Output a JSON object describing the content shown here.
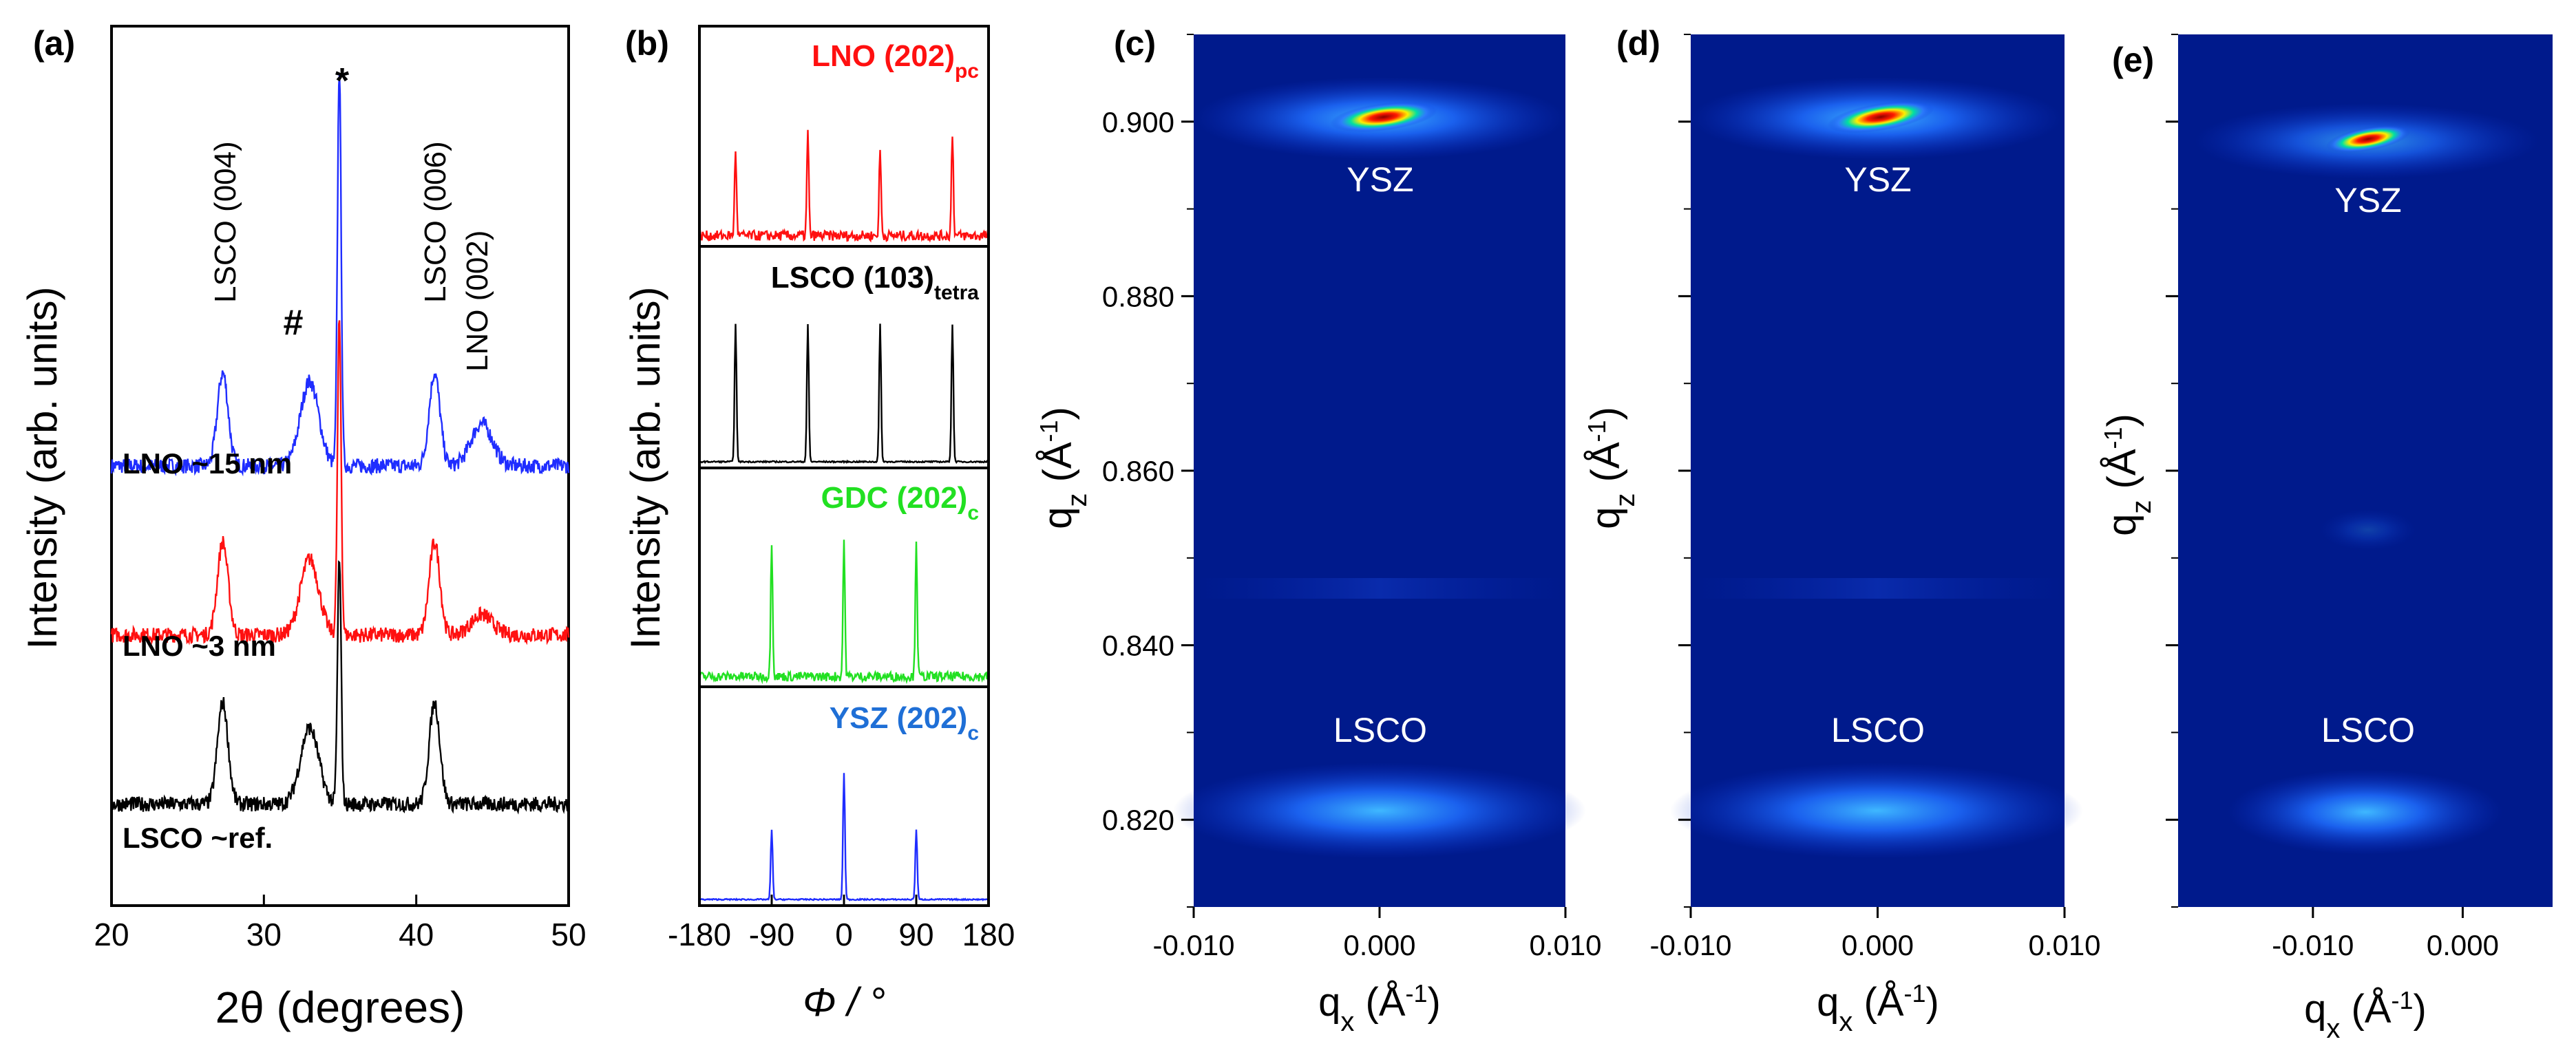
{
  "colors": {
    "blue": "#1f2dff",
    "red": "#ff1010",
    "black": "#000000",
    "green": "#22e022",
    "cyan_label": "#1565c0",
    "map_bg": "#001a8c",
    "map_text": "#ffffff",
    "frame": "#000000"
  },
  "chart_data": [
    {
      "panel": "(a)",
      "type": "line",
      "xlabel": "2θ (degrees)",
      "ylabel": "Intensity (arb. units)",
      "xlim": [
        20,
        50
      ],
      "xticks": [
        "20",
        "30",
        "40",
        "50"
      ],
      "series": [
        {
          "name": "LNO ~15 nm",
          "color": "#1f2dff",
          "baseline": 2.0,
          "peaks": [
            [
              27.3,
              0.55,
              0.35
            ],
            [
              33.0,
              0.5,
              0.6
            ],
            [
              34.95,
              2.35,
              0.12
            ],
            [
              41.2,
              0.55,
              0.35
            ],
            [
              44.3,
              0.25,
              0.7
            ]
          ]
        },
        {
          "name": "LNO ~3 nm",
          "color": "#ff1010",
          "baseline": 1.0,
          "peaks": [
            [
              27.3,
              0.55,
              0.35
            ],
            [
              33.0,
              0.45,
              0.6
            ],
            [
              34.95,
              1.85,
              0.12
            ],
            [
              41.2,
              0.55,
              0.35
            ],
            [
              44.3,
              0.12,
              0.7
            ]
          ]
        },
        {
          "name": "LSCO ~ref.",
          "color": "#000000",
          "baseline": 0.0,
          "peaks": [
            [
              27.3,
              0.6,
              0.35
            ],
            [
              33.0,
              0.45,
              0.6
            ],
            [
              34.95,
              1.45,
              0.12
            ],
            [
              41.2,
              0.6,
              0.35
            ]
          ]
        }
      ],
      "annotations": [
        "LSCO (004)",
        "#",
        "*",
        "LSCO (006)",
        "LNO (002)"
      ]
    },
    {
      "panel": "(b)",
      "type": "line",
      "xlabel": "Φ / °",
      "ylabel": "Intensity (arb. units)",
      "xlim": [
        -180,
        180
      ],
      "xticks": [
        "-180",
        "-90",
        "0",
        "90",
        "180"
      ],
      "series": [
        {
          "name": "LNO (202)",
          "sub": "pc",
          "color": "#ff1010",
          "peaks": [
            -135,
            -45,
            45,
            135
          ]
        },
        {
          "name": "LSCO (103)",
          "sub": "tetra",
          "color": "#000000",
          "peaks": [
            -135,
            -45,
            45,
            135
          ]
        },
        {
          "name": "GDC (202)",
          "sub": "c",
          "color": "#22e022",
          "peaks": [
            -90,
            0,
            90
          ]
        },
        {
          "name": "YSZ (202)",
          "sub": "c",
          "color": "#1f2dff",
          "peaks": [
            -90,
            0,
            90
          ]
        }
      ]
    },
    {
      "panel": "(c)",
      "type": "heatmap",
      "xlabel": "qx (Å-1)",
      "ylabel": "qz (Å-1)",
      "xlim": [
        -0.01,
        0.01
      ],
      "ylim": [
        0.81,
        0.91
      ],
      "xticks": [
        "-0.010",
        "0.000",
        "0.010"
      ],
      "yticks": [
        "0.820",
        "0.840",
        "0.860",
        "0.880",
        "0.900"
      ],
      "features": [
        {
          "label": "YSZ",
          "qx": 0.0,
          "qz": 0.9
        },
        {
          "label": "LSCO",
          "qx": 0.0,
          "qz": 0.82
        }
      ]
    },
    {
      "panel": "(d)",
      "type": "heatmap",
      "xlabel": "qx (Å-1)",
      "ylabel": "qz (Å-1)",
      "xlim": [
        -0.01,
        0.01
      ],
      "ylim": [
        0.81,
        0.91
      ],
      "xticks": [
        "-0.010",
        "0.000",
        "0.010"
      ],
      "features": [
        {
          "label": "YSZ",
          "qx": 0.0,
          "qz": 0.9
        },
        {
          "label": "LSCO",
          "qx": 0.0,
          "qz": 0.82
        }
      ]
    },
    {
      "panel": "(e)",
      "type": "heatmap",
      "xlabel": "qx (Å-1)",
      "ylabel": "qz (Å-1)",
      "xlim": [
        -0.019,
        0.006
      ],
      "ylim": [
        0.81,
        0.91
      ],
      "xticks": [
        "-0.010",
        "0.000"
      ],
      "features": [
        {
          "label": "YSZ",
          "qx": -0.006,
          "qz": 0.898
        },
        {
          "label": "LSCO",
          "qx": -0.006,
          "qz": 0.82
        }
      ]
    }
  ]
}
